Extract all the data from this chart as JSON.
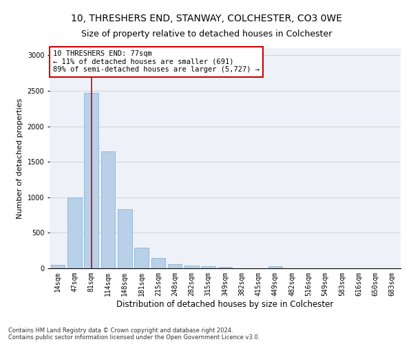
{
  "title1": "10, THRESHERS END, STANWAY, COLCHESTER, CO3 0WE",
  "title2": "Size of property relative to detached houses in Colchester",
  "xlabel": "Distribution of detached houses by size in Colchester",
  "ylabel": "Number of detached properties",
  "categories": [
    "14sqm",
    "47sqm",
    "81sqm",
    "114sqm",
    "148sqm",
    "181sqm",
    "215sqm",
    "248sqm",
    "282sqm",
    "315sqm",
    "349sqm",
    "382sqm",
    "415sqm",
    "449sqm",
    "482sqm",
    "516sqm",
    "549sqm",
    "583sqm",
    "616sqm",
    "650sqm",
    "683sqm"
  ],
  "values": [
    50,
    1000,
    2470,
    1650,
    830,
    295,
    150,
    55,
    40,
    30,
    20,
    0,
    0,
    30,
    0,
    0,
    0,
    0,
    0,
    0,
    0
  ],
  "bar_color": "#b8d0e8",
  "bar_edgecolor": "#8ab4d4",
  "vline_x": 2,
  "vline_color": "#cc0000",
  "annotation_text": "10 THRESHERS END: 77sqm\n← 11% of detached houses are smaller (691)\n89% of semi-detached houses are larger (5,727) →",
  "annotation_box_color": "#ffffff",
  "annotation_box_edgecolor": "#cc0000",
  "ylim": [
    0,
    3100
  ],
  "yticks": [
    0,
    500,
    1000,
    1500,
    2000,
    2500,
    3000
  ],
  "grid_color": "#cccccc",
  "bg_color": "#eef2f8",
  "footer": "Contains HM Land Registry data © Crown copyright and database right 2024.\nContains public sector information licensed under the Open Government Licence v3.0.",
  "title1_fontsize": 10,
  "title2_fontsize": 9,
  "xlabel_fontsize": 8.5,
  "ylabel_fontsize": 8,
  "tick_fontsize": 7,
  "annotation_fontsize": 7.5,
  "footer_fontsize": 6
}
